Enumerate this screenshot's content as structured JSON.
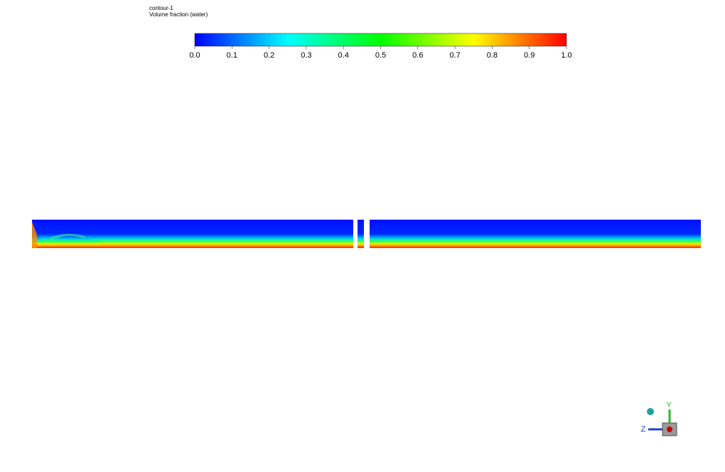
{
  "title": "contour-1",
  "subtitle": "Volume fraction (water)",
  "colorbar": {
    "range": [
      0,
      1
    ],
    "ticks": [
      {
        "value": 0,
        "label": "0.0"
      },
      {
        "value": 0.1,
        "label": "0.1"
      },
      {
        "value": 0.2,
        "label": "0.2"
      },
      {
        "value": 0.3,
        "label": "0.3"
      },
      {
        "value": 0.4,
        "label": "0.4"
      },
      {
        "value": 0.5,
        "label": "0.5"
      },
      {
        "value": 0.6,
        "label": "0.6"
      },
      {
        "value": 0.7,
        "label": "0.7"
      },
      {
        "value": 0.8,
        "label": "0.8"
      },
      {
        "value": 0.9,
        "label": "0.9"
      },
      {
        "value": 1,
        "label": "1.0"
      }
    ]
  },
  "triad": {
    "y_label": "Y",
    "z_label": "Z"
  }
}
